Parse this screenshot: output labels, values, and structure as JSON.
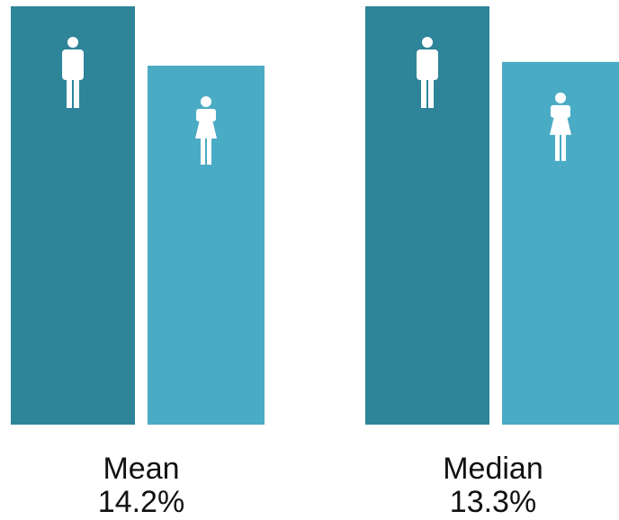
{
  "chart_data": {
    "type": "bar",
    "categories": [
      "Mean",
      "Median"
    ],
    "series": [
      {
        "color": "#2e8499",
        "values": [
          100,
          100
        ]
      },
      {
        "color": "#4aabc4",
        "values": [
          85.8,
          86.7
        ]
      }
    ],
    "gaps": [
      14.2,
      13.3
    ],
    "gap_labels": [
      "14.2%",
      "13.3%"
    ],
    "ylim": [
      0,
      100
    ]
  }
}
